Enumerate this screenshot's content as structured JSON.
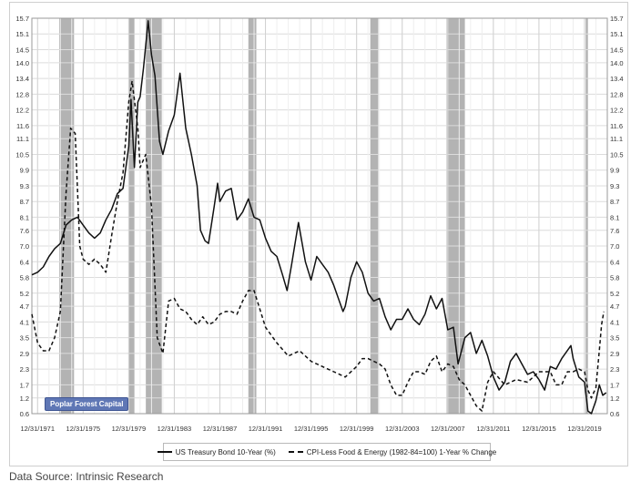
{
  "chart_data": {
    "type": "line",
    "x_ticks": [
      "12/31/1971",
      "12/31/1975",
      "12/31/1979",
      "12/31/1983",
      "12/31/1987",
      "12/31/1991",
      "12/31/1995",
      "12/31/1999",
      "12/31/2003",
      "12/31/2007",
      "12/31/2011",
      "12/31/2015",
      "12/31/2019"
    ],
    "y_ticks": [
      "15.7",
      "15.1",
      "14.5",
      "14.0",
      "13.4",
      "12.8",
      "12.2",
      "11.6",
      "11.1",
      "10.5",
      "9.9",
      "9.3",
      "8.7",
      "8.1",
      "7.6",
      "7.0",
      "6.4",
      "5.8",
      "5.2",
      "4.7",
      "4.1",
      "3.5",
      "2.9",
      "2.3",
      "1.7",
      "1.2",
      "0.6"
    ],
    "ylim": [
      0.6,
      15.7
    ],
    "xlim": [
      1971.5,
      2022.0
    ],
    "grid": true,
    "recessions": [
      [
        1973.9,
        1975.2
      ],
      [
        1980.0,
        1980.5
      ],
      [
        1981.5,
        1982.9
      ],
      [
        1990.5,
        1991.2
      ],
      [
        2001.2,
        2001.9
      ],
      [
        2007.9,
        2009.5
      ],
      [
        2020.1,
        2020.3
      ]
    ],
    "series": [
      {
        "name": "US Treasury Bond 10-Year (%)",
        "style": "solid",
        "color": "#111111",
        "x": [
          1971.5,
          1972.0,
          1972.5,
          1973.0,
          1973.5,
          1974.0,
          1974.5,
          1975.0,
          1975.5,
          1976.0,
          1976.5,
          1977.0,
          1977.5,
          1978.0,
          1978.5,
          1979.0,
          1979.5,
          1980.0,
          1980.2,
          1980.5,
          1980.8,
          1981.0,
          1981.3,
          1981.7,
          1982.0,
          1982.3,
          1982.7,
          1983.0,
          1983.5,
          1984.0,
          1984.5,
          1985.0,
          1985.5,
          1986.0,
          1986.3,
          1986.7,
          1987.0,
          1987.5,
          1987.8,
          1988.0,
          1988.5,
          1989.0,
          1989.5,
          1990.0,
          1990.5,
          1991.0,
          1991.5,
          1992.0,
          1992.5,
          1993.0,
          1993.5,
          1993.9,
          1994.3,
          1994.9,
          1995.5,
          1996.0,
          1996.5,
          1997.0,
          1997.5,
          1998.0,
          1998.8,
          1999.0,
          1999.5,
          2000.0,
          2000.5,
          2001.0,
          2001.5,
          2002.0,
          2002.5,
          2003.0,
          2003.5,
          2004.0,
          2004.5,
          2005.0,
          2005.5,
          2006.0,
          2006.5,
          2007.0,
          2007.5,
          2008.0,
          2008.5,
          2008.9,
          2009.5,
          2010.0,
          2010.5,
          2011.0,
          2011.5,
          2012.0,
          2012.5,
          2013.0,
          2013.5,
          2014.0,
          2014.5,
          2015.0,
          2015.5,
          2016.0,
          2016.5,
          2017.0,
          2017.5,
          2018.0,
          2018.8,
          2019.0,
          2019.5,
          2020.0,
          2020.3,
          2020.6,
          2021.0,
          2021.3,
          2021.6,
          2021.9
        ],
        "values": [
          5.9,
          6.0,
          6.2,
          6.6,
          6.9,
          7.1,
          7.8,
          8.0,
          8.1,
          7.8,
          7.5,
          7.3,
          7.5,
          8.0,
          8.4,
          9.0,
          9.2,
          10.8,
          12.6,
          10.0,
          12.5,
          12.7,
          13.8,
          15.6,
          14.3,
          13.5,
          11.0,
          10.5,
          11.4,
          12.0,
          13.6,
          11.5,
          10.5,
          9.3,
          7.6,
          7.2,
          7.1,
          8.5,
          9.4,
          8.7,
          9.1,
          9.2,
          8.0,
          8.3,
          8.8,
          8.1,
          8.0,
          7.3,
          6.8,
          6.6,
          5.9,
          5.3,
          6.3,
          7.9,
          6.4,
          5.7,
          6.6,
          6.3,
          6.0,
          5.5,
          4.5,
          4.7,
          5.8,
          6.4,
          6.0,
          5.2,
          4.9,
          5.0,
          4.3,
          3.8,
          4.2,
          4.2,
          4.6,
          4.2,
          4.0,
          4.4,
          5.1,
          4.6,
          5.0,
          3.8,
          3.9,
          2.5,
          3.5,
          3.7,
          2.9,
          3.4,
          2.8,
          2.0,
          1.5,
          1.8,
          2.6,
          2.9,
          2.5,
          2.1,
          2.2,
          1.9,
          1.5,
          2.4,
          2.3,
          2.7,
          3.2,
          2.7,
          2.0,
          1.8,
          0.7,
          0.6,
          1.1,
          1.7,
          1.3,
          1.4
        ]
      },
      {
        "name": "CPI-Less Food & Energy (1982-84=100) 1-Year % Change",
        "style": "dashed",
        "color": "#111111",
        "x": [
          1971.5,
          1972.0,
          1972.5,
          1973.0,
          1973.5,
          1974.0,
          1974.5,
          1974.9,
          1975.3,
          1975.7,
          1976.0,
          1976.5,
          1977.0,
          1977.5,
          1978.0,
          1978.5,
          1979.0,
          1979.5,
          1980.0,
          1980.3,
          1980.8,
          1981.0,
          1981.5,
          1982.0,
          1982.5,
          1983.0,
          1983.5,
          1984.0,
          1984.5,
          1985.0,
          1985.5,
          1986.0,
          1986.5,
          1987.0,
          1987.5,
          1988.0,
          1988.5,
          1989.0,
          1989.5,
          1990.0,
          1990.5,
          1991.0,
          1991.5,
          1992.0,
          1993.0,
          1994.0,
          1995.0,
          1996.0,
          1997.0,
          1998.0,
          1999.0,
          2000.0,
          2000.5,
          2001.0,
          2001.5,
          2002.0,
          2002.5,
          2003.0,
          2003.5,
          2004.0,
          2004.5,
          2005.0,
          2005.5,
          2006.0,
          2006.5,
          2007.0,
          2007.5,
          2008.0,
          2008.5,
          2009.0,
          2009.5,
          2010.0,
          2010.5,
          2011.0,
          2011.5,
          2012.0,
          2013.0,
          2014.0,
          2015.0,
          2016.0,
          2017.0,
          2017.5,
          2018.0,
          2018.5,
          2019.0,
          2019.5,
          2020.0,
          2020.3,
          2020.6,
          2021.0,
          2021.3,
          2021.5,
          2021.7
        ],
        "values": [
          4.4,
          3.3,
          3.0,
          3.0,
          3.5,
          4.5,
          9.0,
          11.5,
          11.3,
          7.0,
          6.5,
          6.3,
          6.5,
          6.3,
          6.0,
          7.4,
          8.7,
          9.8,
          12.5,
          13.3,
          11.5,
          10.0,
          10.5,
          8.5,
          3.5,
          2.9,
          4.9,
          5.0,
          4.6,
          4.5,
          4.2,
          4.0,
          4.3,
          4.0,
          4.1,
          4.4,
          4.5,
          4.5,
          4.4,
          4.9,
          5.3,
          5.3,
          4.6,
          3.9,
          3.3,
          2.8,
          3.0,
          2.6,
          2.4,
          2.2,
          2.0,
          2.4,
          2.7,
          2.7,
          2.6,
          2.5,
          2.3,
          1.7,
          1.3,
          1.3,
          1.8,
          2.2,
          2.2,
          2.1,
          2.6,
          2.8,
          2.2,
          2.5,
          2.4,
          1.9,
          1.7,
          1.3,
          0.9,
          0.7,
          1.8,
          2.2,
          1.7,
          1.9,
          1.8,
          2.2,
          2.2,
          1.7,
          1.7,
          2.2,
          2.2,
          2.3,
          2.2,
          1.5,
          1.2,
          1.6,
          3.0,
          4.0,
          4.5
        ]
      }
    ]
  },
  "watermark": "Poplar Forest Capital",
  "source": "Data Source: Intrinsic Research"
}
